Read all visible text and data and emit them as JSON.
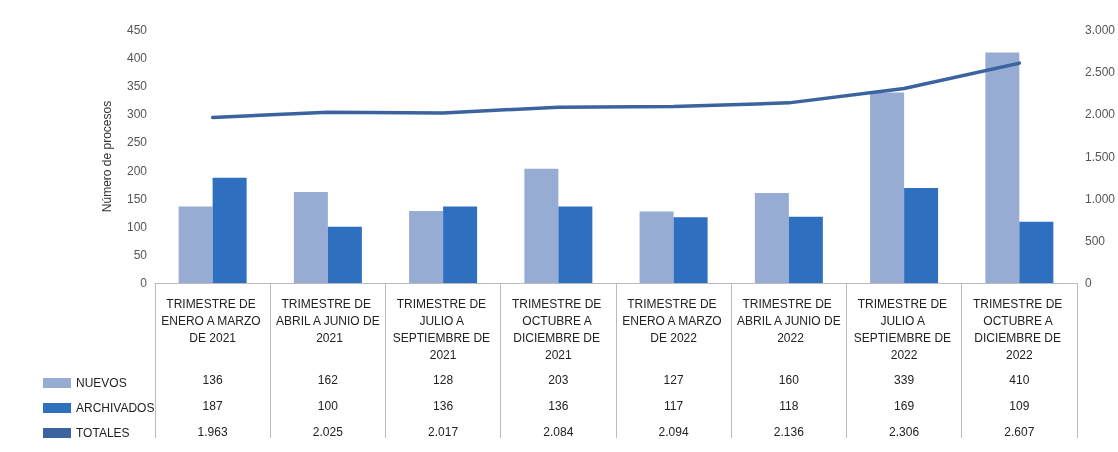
{
  "chart_data": {
    "type": "bar",
    "ylabel": "Número de procesos",
    "categories": [
      "TRIMESTRE DE ENERO A MARZO DE 2021",
      "TRIMESTRE DE ABRIL A JUNIO DE 2021",
      "TRIMESTRE DE JULIO A SEPTIEMBRE DE 2021",
      "TRIMESTRE DE OCTUBRE A DICIEMBRE DE 2021",
      "TRIMESTRE DE ENERO A MARZO DE 2022",
      "TRIMESTRE DE ABRIL A JUNIO DE 2022",
      "TRIMESTRE DE JULIO A SEPTIEMBRE DE 2022",
      "TRIMESTRE DE OCTUBRE A DICIEMBRE DE 2022"
    ],
    "series": [
      {
        "name": "NUEVOS",
        "color": "#97acd3",
        "values": [
          136,
          162,
          128,
          203,
          127,
          160,
          339,
          410
        ],
        "value_labels": [
          "136",
          "162",
          "128",
          "203",
          "127",
          "160",
          "339",
          "410"
        ]
      },
      {
        "name": "ARCHIVADOS",
        "color": "#2e6fc0",
        "values": [
          187,
          100,
          136,
          136,
          117,
          118,
          169,
          109
        ],
        "value_labels": [
          "187",
          "100",
          "136",
          "136",
          "117",
          "118",
          "169",
          "109"
        ]
      },
      {
        "name": "TOTALES",
        "type": "line",
        "axis": "y2",
        "color": "#3a63a0",
        "values": [
          1963,
          2025,
          2017,
          2084,
          2094,
          2136,
          2306,
          2607
        ],
        "value_labels": [
          "1.963",
          "2.025",
          "2.017",
          "2.084",
          "2.094",
          "2.136",
          "2.306",
          "2.607"
        ]
      }
    ],
    "ylim": [
      0,
      450
    ],
    "yticks": [
      0,
      50,
      100,
      150,
      200,
      250,
      300,
      350,
      400,
      450
    ],
    "y2lim": [
      0,
      3000
    ],
    "y2ticks": [
      0,
      500,
      {
        "value": 1000,
        "label": "1.000"
      },
      {
        "value": 1500,
        "label": "1.500"
      },
      {
        "value": 2000,
        "label": "2.000"
      },
      {
        "value": 2500,
        "label": "2.500"
      },
      {
        "value": 3000,
        "label": "3.000"
      }
    ],
    "grid": false,
    "legend": "bottom left",
    "marker": "none",
    "line_style": "solid"
  }
}
